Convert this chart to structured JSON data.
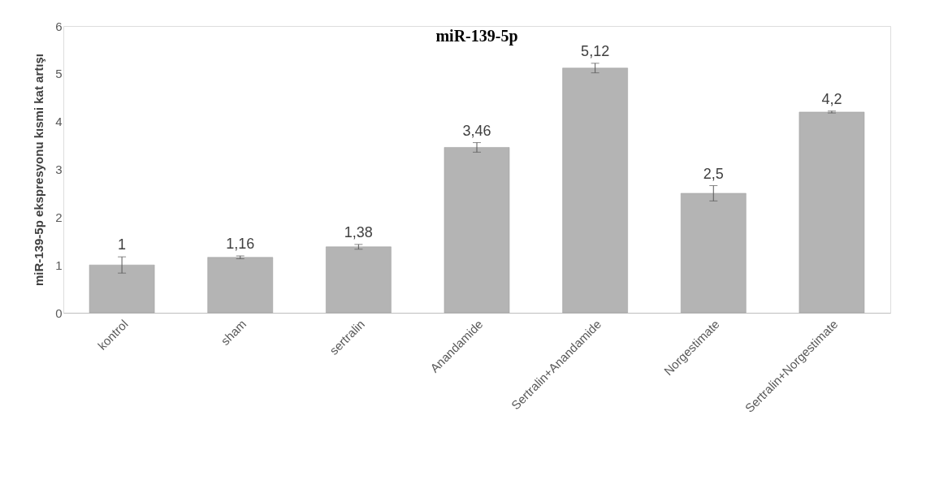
{
  "chart_data": {
    "type": "bar",
    "title": "miR-139-5p",
    "ylabel": "miR-139-5p ekspresyonu kısmi kat artışı",
    "categories": [
      "kontrol",
      "sham",
      "sertralin",
      "Anandamide",
      "Sertralin+Anandamide",
      "Norgestimate",
      "Sertralin+Norgestimate"
    ],
    "values": [
      1,
      1.16,
      1.38,
      3.46,
      5.12,
      2.5,
      4.2
    ],
    "errors": [
      0.17,
      0.03,
      0.05,
      0.1,
      0.1,
      0.16,
      0.02
    ],
    "value_labels": [
      "1",
      "1,16",
      "1,38",
      "3,46",
      "5,12",
      "2,5",
      "4,2"
    ],
    "color": "#b4b4b4",
    "ylim": [
      0,
      6
    ],
    "yticks": [
      0,
      1,
      2,
      3,
      4,
      5,
      6
    ],
    "grid": false
  }
}
